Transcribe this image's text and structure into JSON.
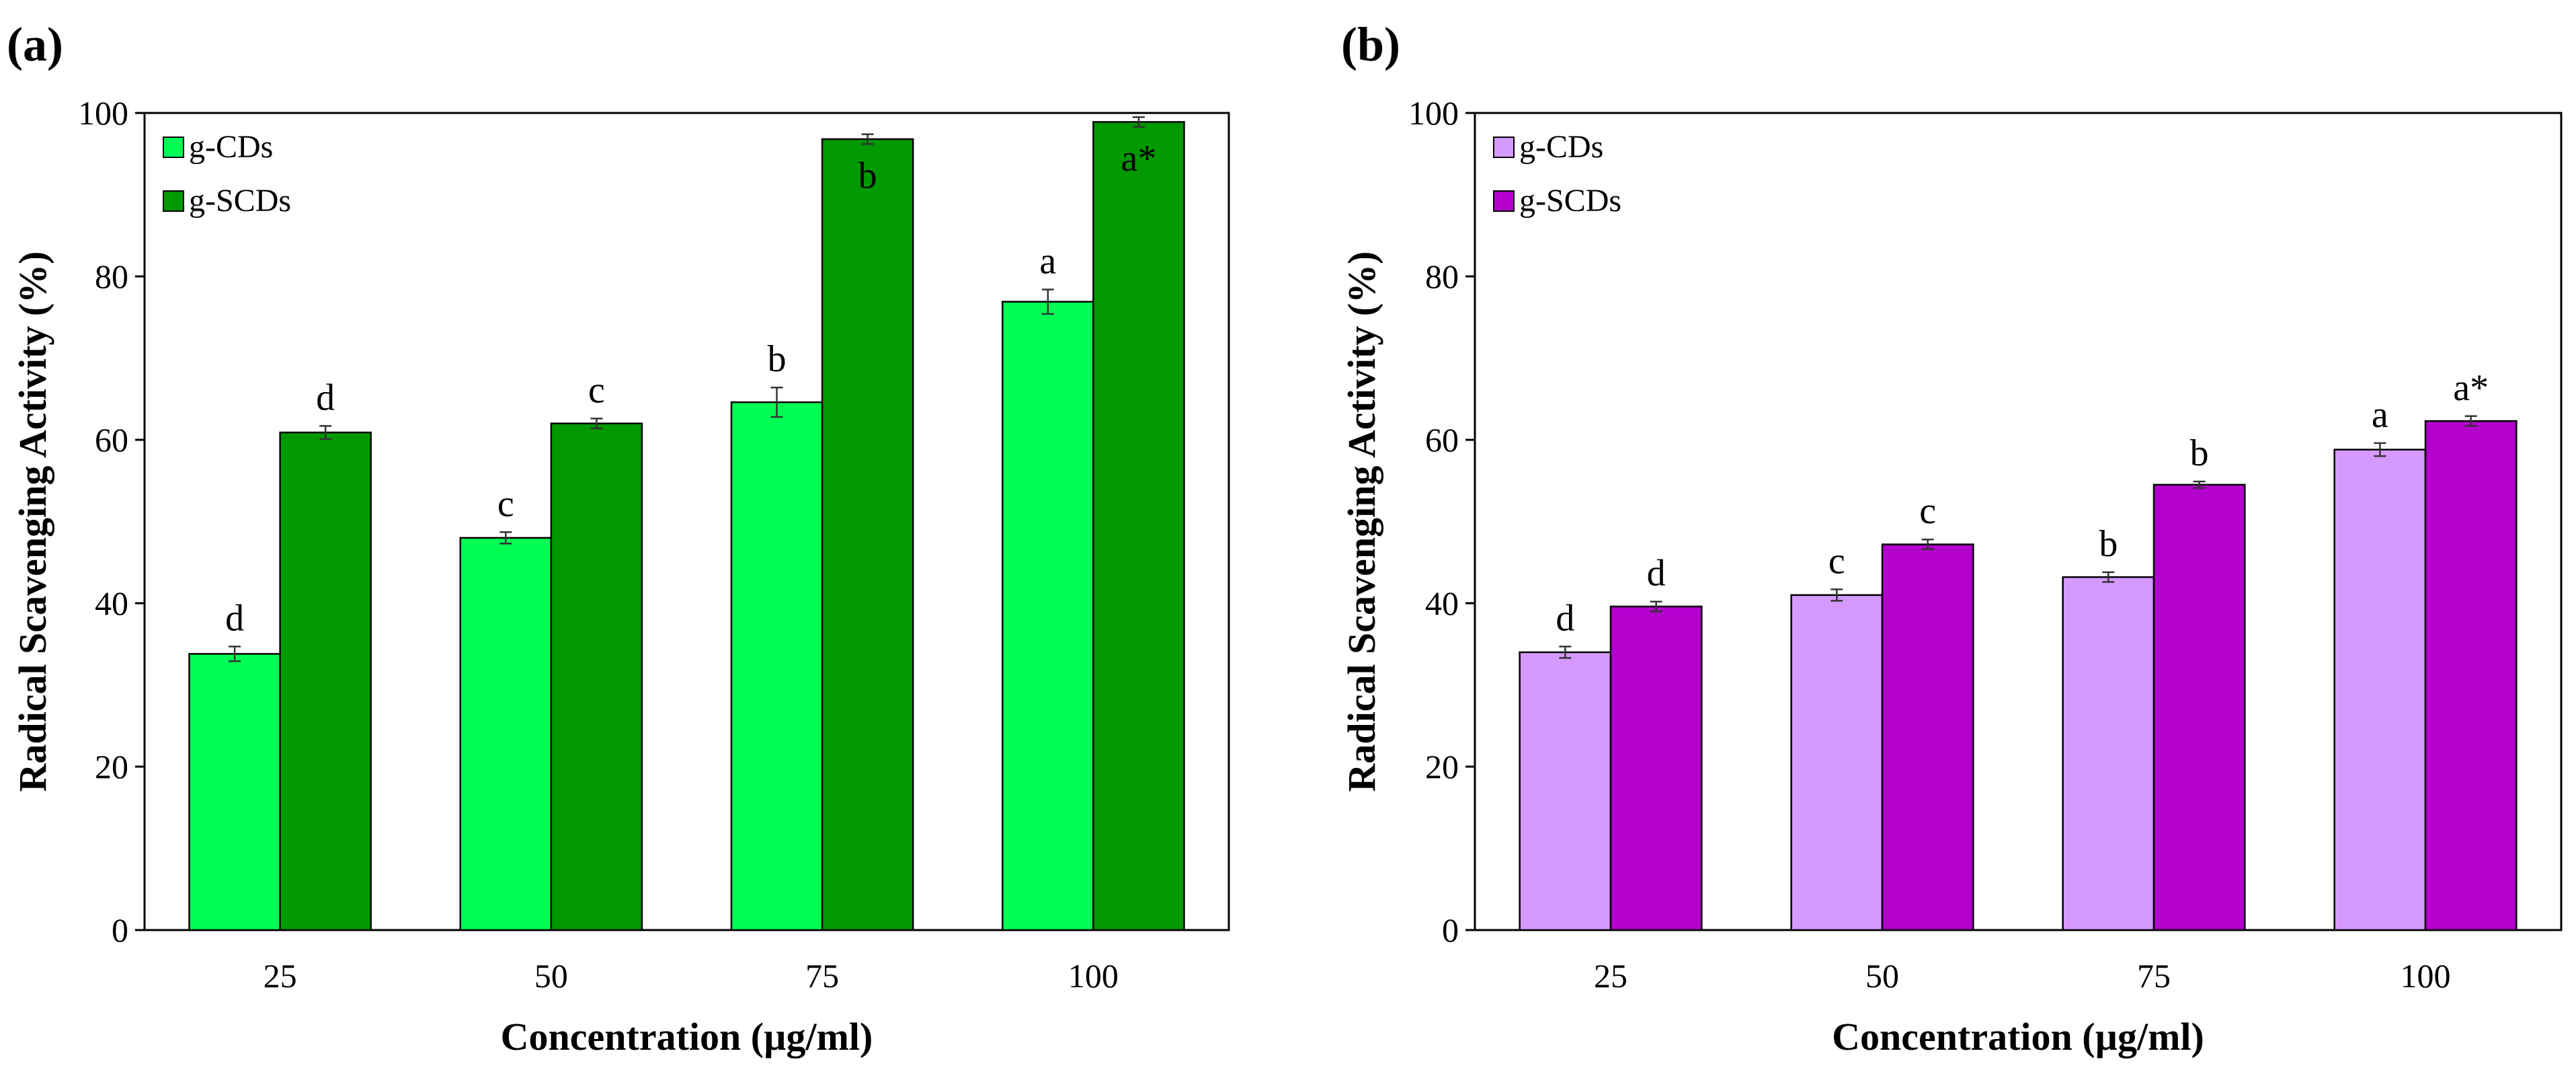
{
  "panel_labels": [
    "(a)",
    "(b)"
  ],
  "chart_data": [
    {
      "type": "bar",
      "panel": "(a)",
      "categories": [
        "25",
        "50",
        "75",
        "100"
      ],
      "xlabel": "Concentration (µg/ml)",
      "ylabel": "Radical Scavenging Activity (%)",
      "ylim": [
        0,
        100
      ],
      "yticks": [
        0,
        20,
        40,
        60,
        80,
        100
      ],
      "grid": false,
      "legend_position": "top-left",
      "series": [
        {
          "name": "g-CDs",
          "color": "#00ff55",
          "values": [
            33.8,
            48.0,
            64.6,
            76.9
          ],
          "errors": [
            0.9,
            0.7,
            1.8,
            1.5
          ],
          "labels": [
            "d",
            "c",
            "b",
            "a"
          ],
          "label_inside": [
            false,
            false,
            false,
            false
          ]
        },
        {
          "name": "g-SCDs",
          "color": "#009900",
          "values": [
            60.9,
            62.0,
            96.8,
            98.9
          ],
          "errors": [
            0.8,
            0.6,
            0.6,
            0.6
          ],
          "labels": [
            "d",
            "c",
            "b",
            "a*"
          ],
          "label_inside": [
            false,
            false,
            true,
            true
          ]
        }
      ]
    },
    {
      "type": "bar",
      "panel": "(b)",
      "categories": [
        "25",
        "50",
        "75",
        "100"
      ],
      "xlabel": "Concentration (µg/ml)",
      "ylabel": "Radical Scavenging Activity (%)",
      "ylim": [
        0,
        100
      ],
      "yticks": [
        0,
        20,
        40,
        60,
        80,
        100
      ],
      "grid": false,
      "legend_position": "top-left",
      "series": [
        {
          "name": "g-CDs",
          "color": "#d699ff",
          "values": [
            34.0,
            41.0,
            43.2,
            58.8
          ],
          "errors": [
            0.7,
            0.7,
            0.6,
            0.8
          ],
          "labels": [
            "d",
            "c",
            "b",
            "a"
          ],
          "label_inside": [
            false,
            false,
            false,
            false
          ]
        },
        {
          "name": "g-SCDs",
          "color": "#b300cc",
          "values": [
            39.6,
            47.2,
            54.5,
            62.3
          ],
          "errors": [
            0.6,
            0.6,
            0.4,
            0.6
          ],
          "labels": [
            "d",
            "c",
            "b",
            "a*"
          ],
          "label_inside": [
            false,
            false,
            false,
            false
          ]
        }
      ]
    }
  ]
}
